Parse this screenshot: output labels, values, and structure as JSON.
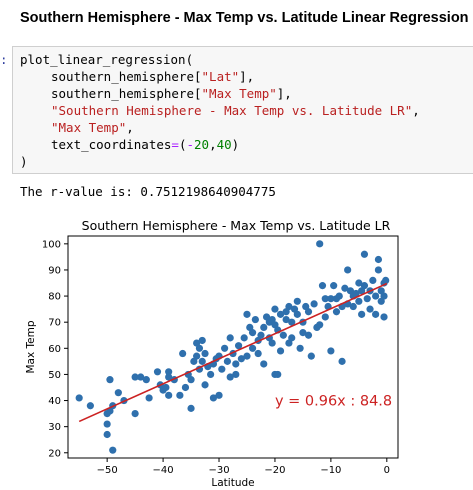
{
  "heading": "Southern Hemisphere - Max Temp vs. Latitude Linear Regression",
  "prompt": ":",
  "code": {
    "func_call": "plot_linear_regression(",
    "arg1_prefix": "southern_hemisphere[",
    "arg1_key": "\"Lat\"",
    "arg1_suffix": "],",
    "arg2_prefix": "southern_hemisphere[",
    "arg2_key": "\"Max Temp\"",
    "arg2_suffix": "],",
    "arg3": "\"Southern Hemisphere - Max Temp vs. Latitude LR\"",
    "arg3_comma": ",",
    "arg4": "\"Max Temp\"",
    "arg4_comma": ",",
    "arg5_name": "text_coordinates",
    "arg5_eq": "=",
    "arg5_paren_open": "(",
    "arg5_v1": "-20",
    "arg5_sep": ",",
    "arg5_v2": "40",
    "arg5_paren_close": ")",
    "close": ")"
  },
  "output_text": "The r-value is: 0.7512198640904775",
  "colors": {
    "point": "#2f70ad",
    "line": "#cc2222",
    "annotation": "#cc2222"
  },
  "chart_data": {
    "type": "scatter",
    "title": "Southern Hemisphere - Max Temp vs. Latitude LR",
    "xlabel": "Latitude",
    "ylabel": "Max Temp",
    "xlim": [
      -57,
      2
    ],
    "ylim": [
      18,
      103
    ],
    "xticks": [
      -50,
      -40,
      -30,
      -20,
      -10,
      0
    ],
    "yticks": [
      20,
      30,
      40,
      50,
      60,
      70,
      80,
      90,
      100
    ],
    "annotation": "y = 0.96x : 84.8",
    "annotation_pos": [
      -20,
      40
    ],
    "regression": {
      "slope": 0.96,
      "intercept": 84.8,
      "x_range": [
        -55,
        0
      ]
    },
    "points": [
      [
        -55,
        41
      ],
      [
        -53,
        38
      ],
      [
        -50,
        35
      ],
      [
        -50,
        31
      ],
      [
        -50,
        27
      ],
      [
        -49.5,
        36
      ],
      [
        -49,
        21
      ],
      [
        -49.5,
        48
      ],
      [
        -49,
        38
      ],
      [
        -48,
        43
      ],
      [
        -47,
        40
      ],
      [
        -45,
        35
      ],
      [
        -45,
        49
      ],
      [
        -44,
        49
      ],
      [
        -43,
        48
      ],
      [
        -42.5,
        41
      ],
      [
        -41,
        51
      ],
      [
        -40.5,
        46
      ],
      [
        -40,
        44
      ],
      [
        -39.5,
        45
      ],
      [
        -39,
        49
      ],
      [
        -39,
        42
      ],
      [
        -39,
        51
      ],
      [
        -38,
        48
      ],
      [
        -37,
        42
      ],
      [
        -36.5,
        58
      ],
      [
        -36,
        45
      ],
      [
        -35.5,
        50
      ],
      [
        -35,
        48
      ],
      [
        -35,
        37
      ],
      [
        -34.5,
        55
      ],
      [
        -34,
        57
      ],
      [
        -34,
        62
      ],
      [
        -33.5,
        52
      ],
      [
        -33.5,
        60
      ],
      [
        -33,
        55
      ],
      [
        -33,
        63
      ],
      [
        -32.5,
        46
      ],
      [
        -32.5,
        58
      ],
      [
        -32,
        53
      ],
      [
        -31.5,
        50
      ],
      [
        -31,
        54
      ],
      [
        -31,
        41
      ],
      [
        -30.5,
        56
      ],
      [
        -30,
        42
      ],
      [
        -30,
        57
      ],
      [
        -29.5,
        52
      ],
      [
        -29,
        60
      ],
      [
        -28.5,
        55
      ],
      [
        -28,
        49
      ],
      [
        -28,
        64
      ],
      [
        -27.5,
        58
      ],
      [
        -27,
        54
      ],
      [
        -27,
        50
      ],
      [
        -26.5,
        61
      ],
      [
        -26,
        56
      ],
      [
        -25.5,
        64
      ],
      [
        -25,
        57
      ],
      [
        -25,
        73
      ],
      [
        -24.5,
        68
      ],
      [
        -24,
        60
      ],
      [
        -24,
        66
      ],
      [
        -23.5,
        71
      ],
      [
        -23,
        58
      ],
      [
        -23,
        63
      ],
      [
        -22.5,
        65
      ],
      [
        -22,
        68
      ],
      [
        -22,
        54
      ],
      [
        -21.5,
        72
      ],
      [
        -21,
        70
      ],
      [
        -21,
        64
      ],
      [
        -20.5,
        62
      ],
      [
        -20.5,
        71
      ],
      [
        -20,
        69
      ],
      [
        -20,
        75
      ],
      [
        -20,
        50
      ],
      [
        -19.5,
        67
      ],
      [
        -19.5,
        50
      ],
      [
        -19,
        73
      ],
      [
        -19,
        59
      ],
      [
        -18.5,
        65
      ],
      [
        -18,
        74
      ],
      [
        -18,
        71
      ],
      [
        -17.5,
        62
      ],
      [
        -17.5,
        76
      ],
      [
        -17,
        70
      ],
      [
        -17,
        64
      ],
      [
        -16.5,
        75
      ],
      [
        -16,
        73
      ],
      [
        -16,
        78
      ],
      [
        -15.5,
        60
      ],
      [
        -15,
        70
      ],
      [
        -15,
        66
      ],
      [
        -14.5,
        76
      ],
      [
        -14,
        65
      ],
      [
        -14,
        74
      ],
      [
        -13.5,
        57
      ],
      [
        -13,
        77
      ],
      [
        -12.5,
        68
      ],
      [
        -12,
        100
      ],
      [
        -12,
        69
      ],
      [
        -11.5,
        84
      ],
      [
        -11,
        72
      ],
      [
        -11,
        79
      ],
      [
        -10.5,
        76
      ],
      [
        -10,
        59
      ],
      [
        -10,
        79
      ],
      [
        -9.5,
        84
      ],
      [
        -9,
        74
      ],
      [
        -9,
        79
      ],
      [
        -8.5,
        80
      ],
      [
        -8,
        55
      ],
      [
        -8,
        76
      ],
      [
        -7.5,
        83
      ],
      [
        -7,
        90
      ],
      [
        -7,
        77
      ],
      [
        -6.5,
        82
      ],
      [
        -6,
        80
      ],
      [
        -6,
        76
      ],
      [
        -5.5,
        81
      ],
      [
        -5,
        78
      ],
      [
        -5,
        85
      ],
      [
        -4.5,
        82
      ],
      [
        -4.5,
        73
      ],
      [
        -4,
        84
      ],
      [
        -4,
        96
      ],
      [
        -3.5,
        79
      ],
      [
        -3,
        82
      ],
      [
        -3,
        75
      ],
      [
        -2.5,
        86
      ],
      [
        -2,
        80
      ],
      [
        -2,
        73
      ],
      [
        -1.5,
        94
      ],
      [
        -1.5,
        90
      ],
      [
        -1,
        82
      ],
      [
        -1,
        78
      ],
      [
        -0.5,
        85
      ],
      [
        -0.5,
        72
      ],
      [
        -0.2,
        86
      ],
      [
        -0.5,
        80
      ]
    ]
  }
}
